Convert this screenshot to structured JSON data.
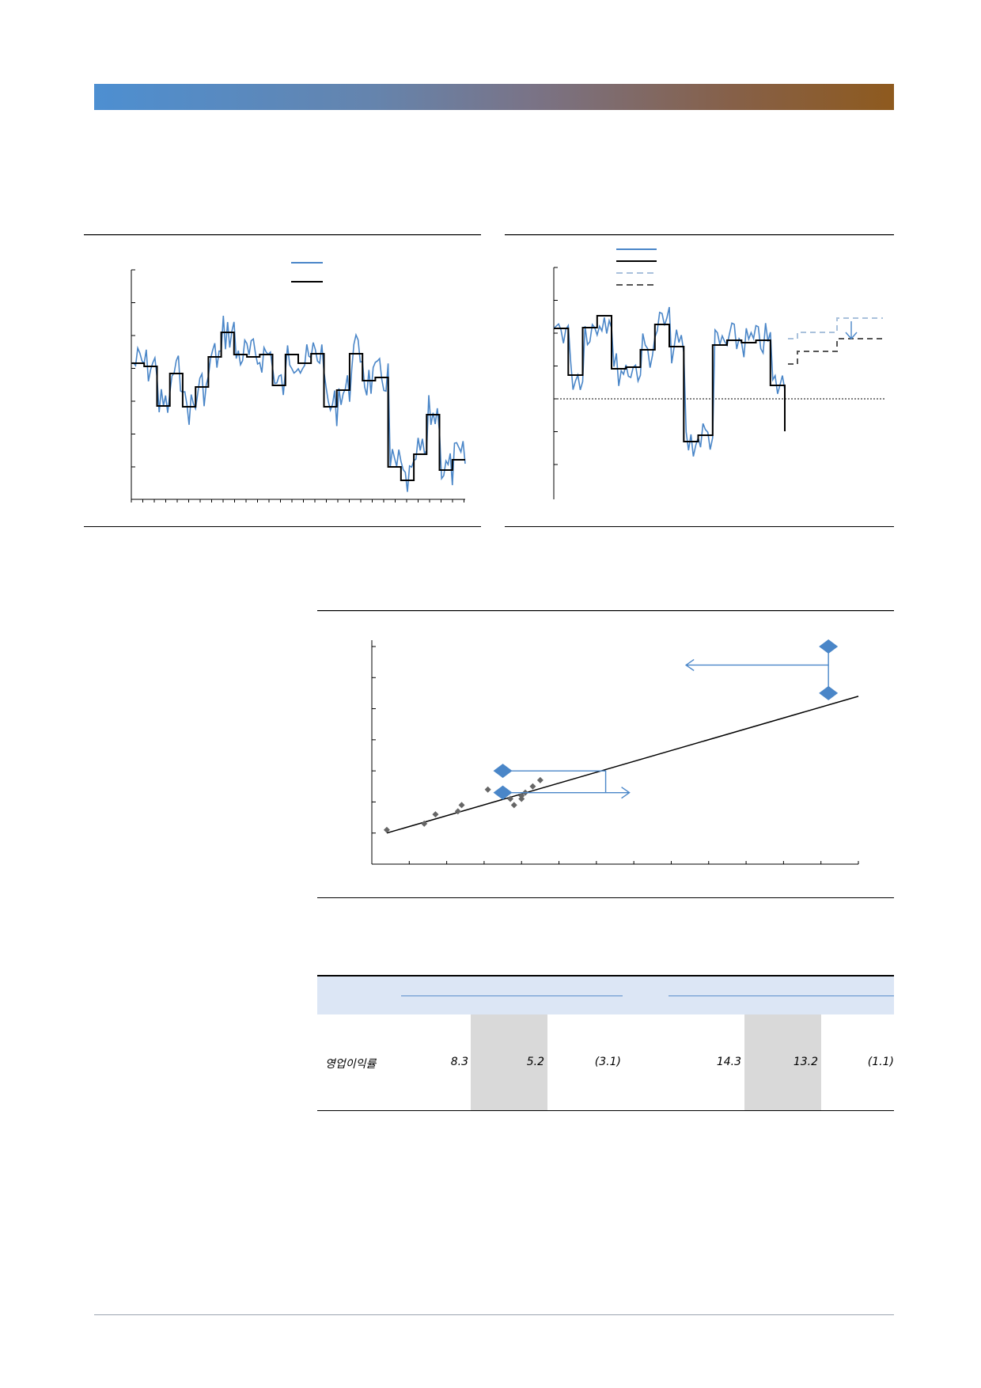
{
  "header": {
    "banner_colors": [
      "#4d8fd1",
      "#8e5a1e"
    ]
  },
  "chart_left": {
    "type": "line",
    "series": [
      {
        "color": "#4a86c8",
        "style": "noisy-line"
      },
      {
        "color": "#000000",
        "style": "step-line"
      }
    ]
  },
  "chart_right": {
    "type": "line",
    "series": [
      {
        "color": "#4a86c8",
        "style": "noisy-line"
      },
      {
        "color": "#000000",
        "style": "step-line"
      },
      {
        "color": "#a9c1dc",
        "style": "dashed"
      },
      {
        "color": "#555555",
        "style": "dashed"
      }
    ],
    "reference_line": "dotted-horizontal"
  },
  "chart_data": {
    "type": "scatter",
    "points": [
      [
        0.4,
        1.1
      ],
      [
        1.4,
        1.3
      ],
      [
        1.7,
        1.6
      ],
      [
        2.3,
        1.7
      ],
      [
        2.4,
        1.9
      ],
      [
        3.1,
        2.4
      ],
      [
        3.5,
        2.2
      ],
      [
        3.7,
        2.1
      ],
      [
        3.8,
        1.9
      ],
      [
        4.0,
        2.2
      ],
      [
        4.1,
        2.3
      ],
      [
        4.3,
        2.5
      ],
      [
        4.0,
        2.1
      ],
      [
        4.5,
        2.7
      ]
    ],
    "trend_line": [
      [
        0.4,
        1.0
      ],
      [
        13.0,
        5.4
      ]
    ],
    "highlight_points": [
      [
        3.5,
        3.0
      ],
      [
        3.5,
        2.3
      ],
      [
        12.2,
        7.0
      ],
      [
        12.2,
        5.5
      ]
    ],
    "xlim": [
      0,
      13
    ],
    "ylim": [
      0,
      7
    ]
  },
  "table": {
    "row": {
      "label": "영업이익률",
      "values": [
        "8.3",
        "5.2",
        "(3.1)",
        "14.3",
        "13.2",
        "(1.1)"
      ]
    }
  }
}
